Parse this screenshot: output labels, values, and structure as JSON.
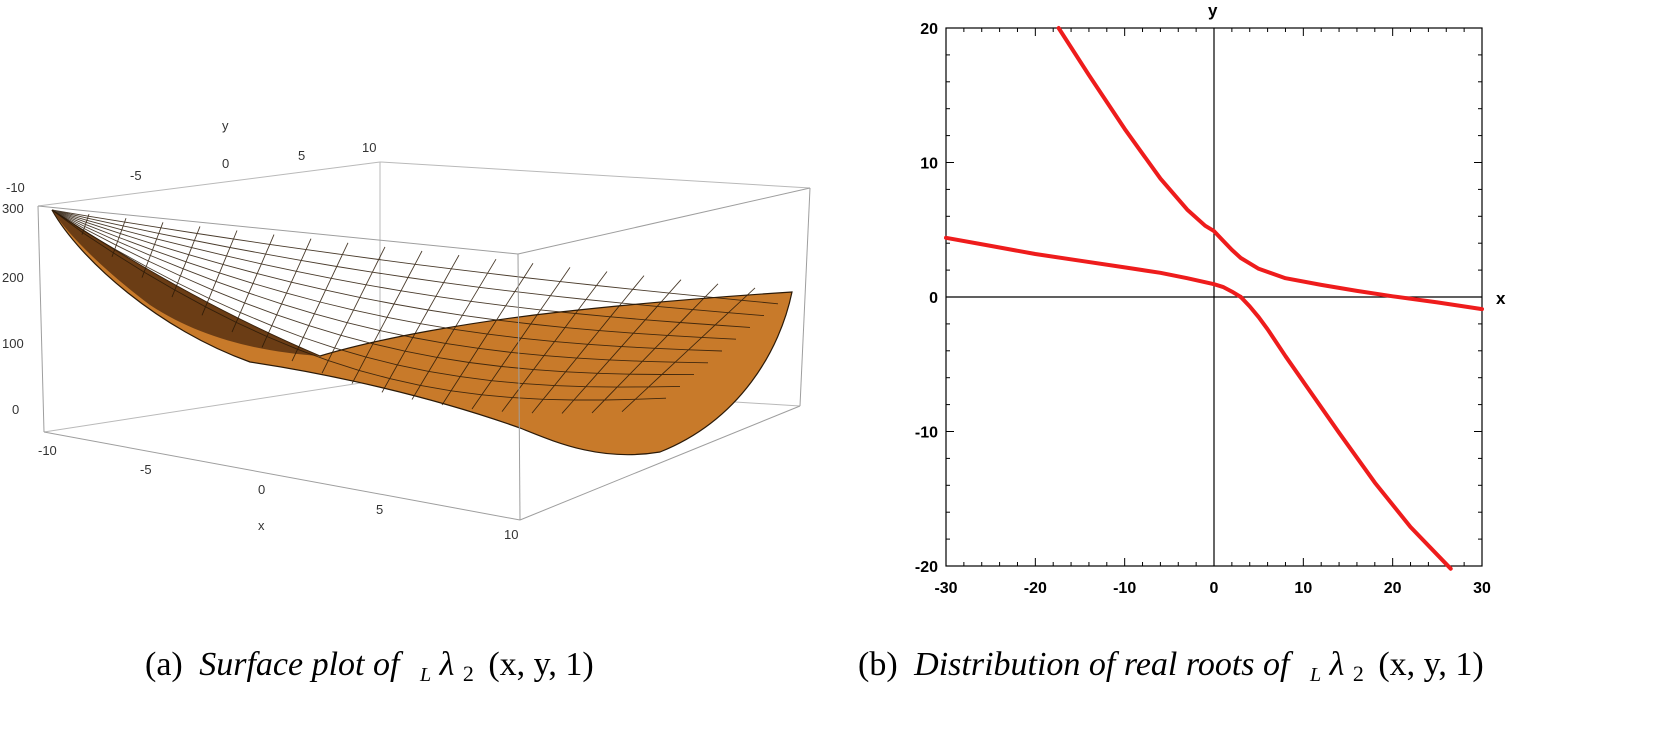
{
  "chart_data": [
    {
      "type": "surface",
      "caption_label": "(a)",
      "caption_text": "Surface plot of",
      "caption_math_sub": "L",
      "caption_math": "λ",
      "caption_math_idx": "2",
      "caption_args": "(x, y, 1)",
      "xlabel": "x",
      "ylabel": "y",
      "xlim": [
        -10,
        10
      ],
      "ylim": [
        -10,
        10
      ],
      "zlim": [
        0,
        300
      ],
      "x_ticks": [
        "-10",
        "-5",
        "0",
        "5",
        "10"
      ],
      "y_ticks": [
        "-10",
        "-5",
        "0",
        "5",
        "10"
      ],
      "z_ticks": [
        "0",
        "100",
        "200",
        "300"
      ],
      "surface_color": "#c87a2a"
    },
    {
      "type": "line",
      "caption_label": "(b)",
      "caption_text": "Distribution of real roots of",
      "caption_math_sub": "L",
      "caption_math": "λ",
      "caption_math_idx": "2",
      "caption_args": "(x, y, 1)",
      "xlabel": "x",
      "ylabel": "y",
      "xlim": [
        -30,
        30
      ],
      "ylim": [
        -20,
        20
      ],
      "x_ticks": [
        -30,
        -20,
        -10,
        0,
        10,
        20,
        30
      ],
      "y_ticks": [
        -20,
        -10,
        0,
        10,
        20
      ],
      "line_color": "#ee1c1c",
      "series": [
        {
          "x": [
            -17.4,
            -14,
            -10,
            -6,
            -3,
            -1,
            0,
            1,
            2,
            3,
            5,
            8,
            12,
            16,
            20,
            25,
            30
          ],
          "y": [
            20,
            16.5,
            12.5,
            8.8,
            6.5,
            5.3,
            4.9,
            4.2,
            3.5,
            2.9,
            2.1,
            1.4,
            0.9,
            0.45,
            0.05,
            -0.4,
            -0.9
          ]
        },
        {
          "x": [
            -30,
            -25,
            -20,
            -15,
            -10,
            -6,
            -3,
            -1,
            0,
            1,
            2,
            3
          ],
          "y": [
            4.4,
            3.8,
            3.2,
            2.7,
            2.2,
            1.8,
            1.4,
            1.1,
            0.95,
            0.75,
            0.4,
            0
          ]
        },
        {
          "x": [
            3,
            4,
            5,
            6,
            8,
            10,
            14,
            18,
            22,
            26.5
          ],
          "y": [
            0,
            -0.7,
            -1.5,
            -2.4,
            -4.4,
            -6.3,
            -10.1,
            -13.8,
            -17.1,
            -20.2
          ]
        }
      ]
    }
  ]
}
